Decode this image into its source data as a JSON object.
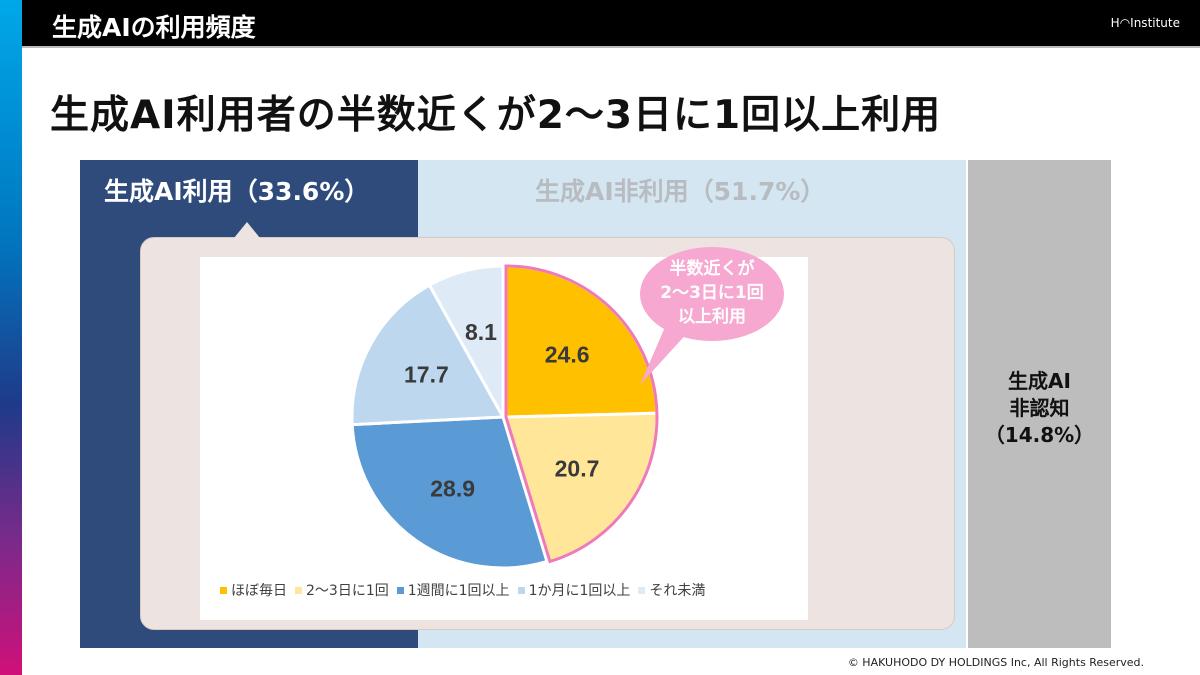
{
  "header": {
    "section_title": "生成AIの利用頻度",
    "logo": "H◠Institute"
  },
  "headline": "生成AI利用者の半数近くが2～3日に1回以上利用",
  "segments": {
    "use": "生成AI利用（33.6%）",
    "nonuse": "生成AI非利用（51.7%）",
    "unaware": [
      "生成AI",
      "非認知",
      "（14.8%）"
    ]
  },
  "callout": [
    "半数近くが",
    "2～3日に1回",
    "以上利用"
  ],
  "colors": {
    "highlight": "#f07ab8",
    "callout": "#f7a8d0"
  },
  "chart_data": {
    "type": "pie",
    "start": "12 o'clock",
    "direction": "clockwise",
    "categories": [
      "ほぼ毎日",
      "2～3日に1回",
      "1週間に1回以上",
      "1か月に1回以上",
      "それ未満"
    ],
    "values": [
      24.6,
      20.7,
      28.9,
      17.7,
      8.1
    ],
    "labels": [
      "24.6",
      "20.7",
      "28.9",
      "17.7",
      "8.1"
    ],
    "colors": [
      "#ffc000",
      "#ffe699",
      "#5b9bd5",
      "#bdd7ee",
      "#deebf7"
    ],
    "legend": "bottom"
  },
  "footer": {
    "copyright": "© HAKUHODO DY HOLDINGS  Inc, All  Rights  Reserved."
  }
}
